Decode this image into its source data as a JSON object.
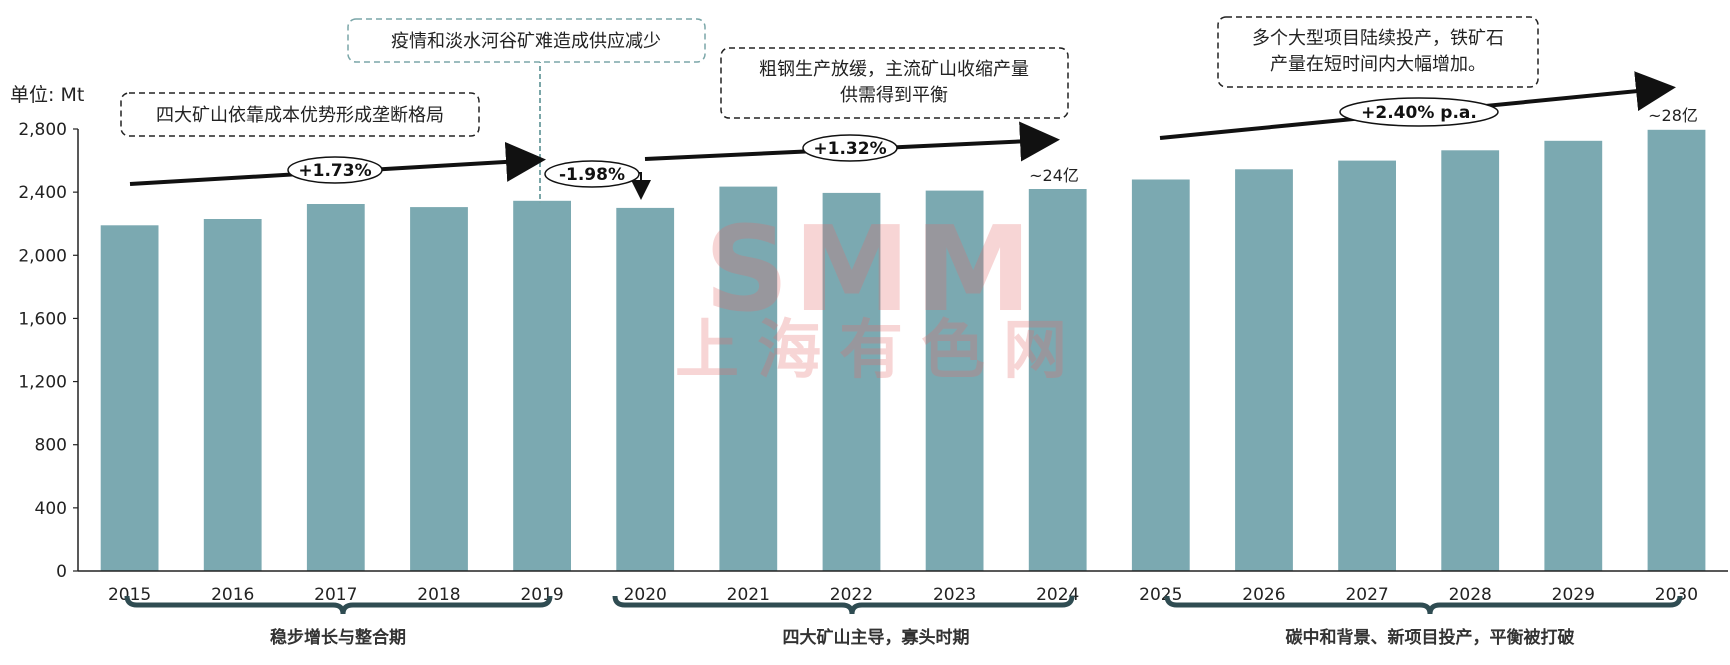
{
  "unit_label": "单位: Mt",
  "colors": {
    "bar": "#7ba9b1",
    "axis": "#222222",
    "brace": "#2f4c52",
    "dashed_box": "#7aa6a8"
  },
  "chart_data": {
    "type": "bar",
    "categories": [
      "2015",
      "2016",
      "2017",
      "2018",
      "2019",
      "2020",
      "2021",
      "2022",
      "2023",
      "2024",
      "2025",
      "2026",
      "2027",
      "2028",
      "2029",
      "2030"
    ],
    "values": [
      2190,
      2230,
      2325,
      2305,
      2345,
      2300,
      2435,
      2395,
      2410,
      2420,
      2480,
      2545,
      2600,
      2665,
      2725,
      2795
    ],
    "ylim": [
      0,
      2800
    ],
    "yticks": [
      0,
      400,
      800,
      1200,
      1600,
      2000,
      2400,
      2800
    ],
    "ytick_labels": [
      "0",
      "400",
      "800",
      "1,200",
      "1,600",
      "2,000",
      "2,400",
      "2,800"
    ],
    "grid": false
  },
  "annotations": {
    "box1": "四大矿山依靠成本优势形成垄断格局",
    "box2": "疫情和淡水河谷矿难造成供应减少",
    "box3_lines": [
      "粗钢生产放缓，主流矿山收缩产量",
      "供需得到平衡"
    ],
    "box4_lines": [
      "多个大型项目陆续投产，铁矿石",
      "产量在短时间内大幅增加。"
    ],
    "label_2024": "~24亿",
    "label_2030": "~28亿"
  },
  "growth_rates": [
    "+1.73%",
    "-1.98%",
    "+1.32%",
    "+2.40% p.a."
  ],
  "periods": [
    "稳步增长与整合期",
    "四大矿山主导，寡头时期",
    "碳中和背景、新项目投产，平衡被打破"
  ],
  "watermark": {
    "line1": "SMM",
    "line2": "上海有色网"
  }
}
